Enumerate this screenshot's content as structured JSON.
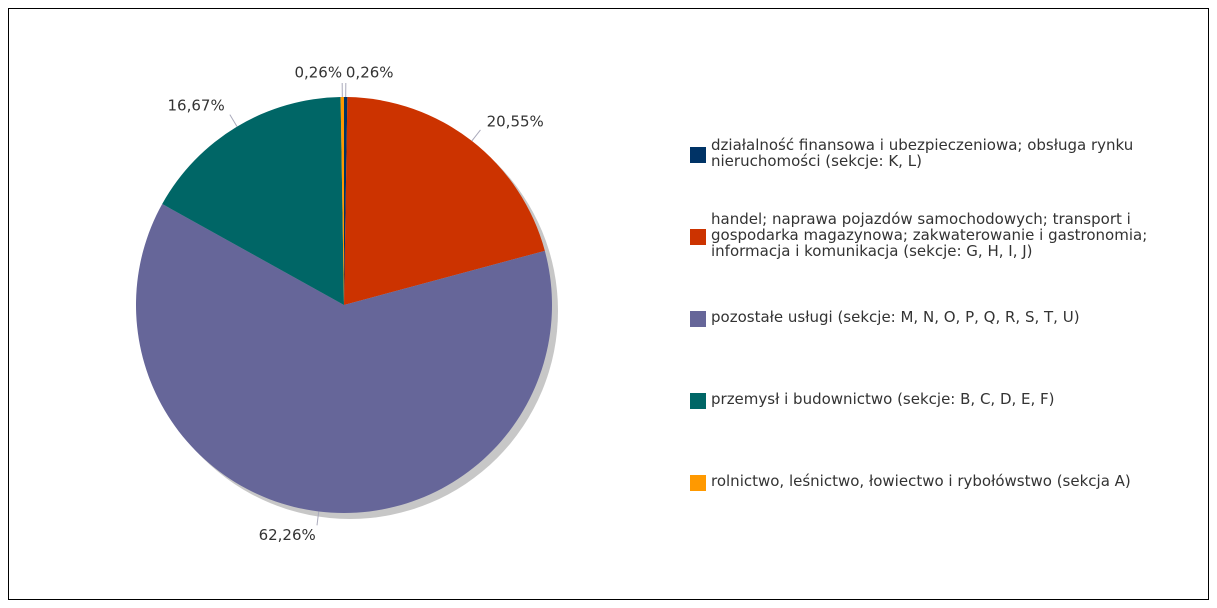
{
  "chart_data": {
    "type": "pie",
    "categories": [
      "działalność finansowa i ubezpieczeniowa; obsługa rynku nieruchomości (sekcje: K, L)",
      "handel; naprawa pojazdów samochodowych; transport i gospodarka magazynowa; zakwaterowanie i gastronomia; informacja i komunikacja (sekcje: G, H, I, J)",
      "pozostałe usługi (sekcje: M, N, O, P, Q, R, S, T, U)",
      "przemysł i budownictwo (sekcje: B, C, D, E, F)",
      "rolnictwo, leśnictwo, łowiectwo i rybołówstwo (sekcja A)"
    ],
    "values": [
      0.26,
      20.55,
      62.26,
      16.67,
      0.26
    ],
    "value_labels": [
      "0,26%",
      "20,55%",
      "62,26%",
      "16,67%",
      "0,26%"
    ],
    "colors": [
      "#003366",
      "#cc3300",
      "#666699",
      "#006666",
      "#ff9900"
    ],
    "legend": "right"
  }
}
